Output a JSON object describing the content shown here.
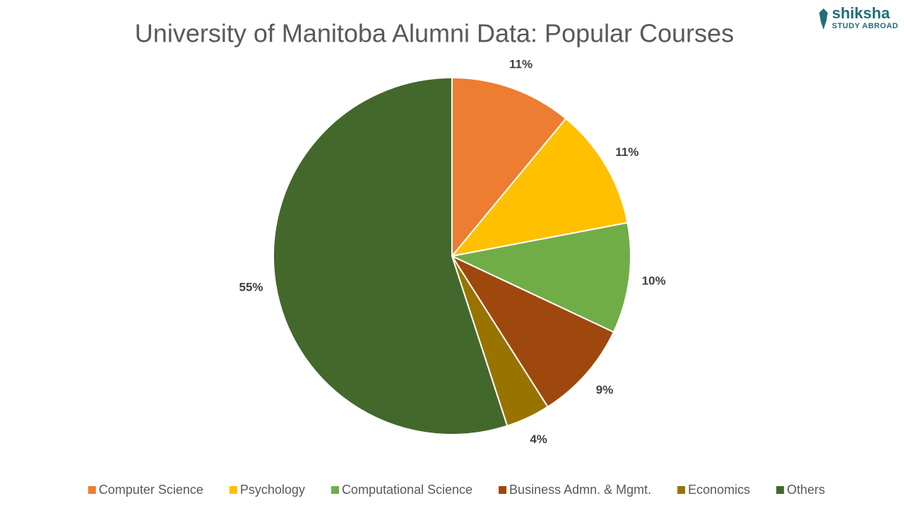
{
  "chart_data": {
    "type": "pie",
    "title": "University of Manitoba Alumni Data: Popular Courses",
    "categories": [
      "Computer Science",
      "Psychology",
      "Computational Science",
      "Business Admn. & Mgmt.",
      "Economics",
      "Others"
    ],
    "values": [
      11,
      11,
      10,
      9,
      4,
      55
    ],
    "value_labels": [
      "11%",
      "11%",
      "10%",
      "9%",
      "4%",
      "55%"
    ],
    "colors": [
      "#ed7d31",
      "#ffc000",
      "#70ad47",
      "#9e480e",
      "#997300",
      "#43682b"
    ],
    "legend": "bottom"
  },
  "logo": {
    "name": "shiksha",
    "tagline": "STUDY ABROAD"
  }
}
